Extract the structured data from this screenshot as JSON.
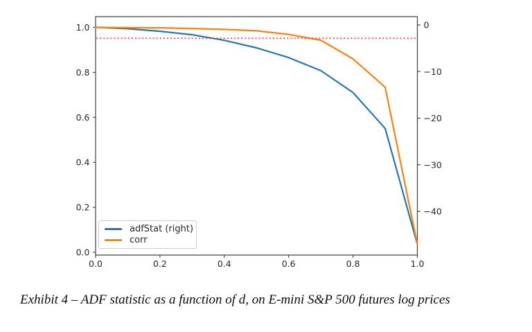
{
  "document": {
    "caption": "Exhibit 4 – ADF statistic as a function of d, on E-mini S&P 500 futures log prices"
  },
  "chart_data": {
    "type": "line",
    "title": "",
    "xlabel": "",
    "ylabel_left": "",
    "ylabel_right": "",
    "x": [
      0.0,
      0.1,
      0.2,
      0.3,
      0.4,
      0.5,
      0.6,
      0.7,
      0.8,
      0.9,
      1.0
    ],
    "series": [
      {
        "name": "adfStat (right)",
        "axis": "right",
        "color": "#1f77b4",
        "values": [
          -0.5,
          -0.8,
          -1.35,
          -2.1,
          -3.3,
          -4.9,
          -7.0,
          -9.8,
          -14.5,
          -22.2,
          -47.1
        ]
      },
      {
        "name": "corr",
        "axis": "left",
        "color": "#ff7f0e",
        "values": [
          1.0,
          0.999,
          0.998,
          0.995,
          0.991,
          0.985,
          0.969,
          0.943,
          0.86,
          0.734,
          0.035
        ]
      }
    ],
    "critical_line": {
      "axis": "right",
      "value": -2.86,
      "color": "#ff2b2b",
      "style": "dotted"
    },
    "x_axis": {
      "range": [
        0.0,
        1.0
      ],
      "tick_values": [
        0.0,
        0.2,
        0.4,
        0.6,
        0.8,
        1.0
      ],
      "tick_labels": [
        "0.0",
        "0.2",
        "0.4",
        "0.6",
        "0.8",
        "1.0"
      ]
    },
    "left_axis": {
      "range": [
        0.0,
        1.0
      ],
      "tick_values": [
        1.0,
        0.8,
        0.6,
        0.4,
        0.2,
        0.0
      ],
      "tick_labels": [
        "1.0",
        "0.8",
        "0.6",
        "0.4",
        "0.2",
        "0.0"
      ]
    },
    "right_axis": {
      "range": [
        -49.5,
        1.8
      ],
      "tick_values": [
        0,
        -10,
        -20,
        -30,
        -40
      ],
      "tick_labels": [
        "0",
        "−10",
        "−20",
        "−30",
        "−40"
      ]
    },
    "legend": {
      "position": "lower left",
      "entries": [
        "adfStat (right)",
        "corr"
      ]
    },
    "grid": false,
    "frame_color": "#3d3d3d",
    "tick_label_color": "#262626"
  }
}
